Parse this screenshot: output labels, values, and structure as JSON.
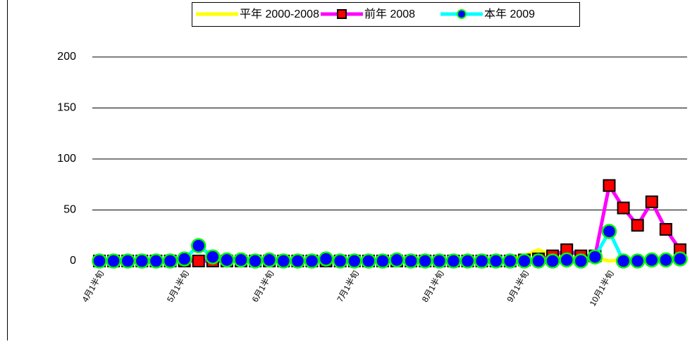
{
  "chart_data": {
    "type": "line",
    "categories": [
      "4月1半旬",
      null,
      null,
      null,
      null,
      null,
      "5月1半旬",
      null,
      null,
      null,
      null,
      null,
      "6月1半旬",
      null,
      null,
      null,
      null,
      null,
      "7月1半旬",
      null,
      null,
      null,
      null,
      null,
      "8月1半旬",
      null,
      null,
      null,
      null,
      null,
      "9月1半旬",
      null,
      null,
      null,
      null,
      null,
      "10月1半旬",
      null,
      null,
      null,
      null,
      null
    ],
    "series": [
      {
        "name": "平年 2000-2008",
        "color": "#ffff00",
        "marker": "none",
        "values": [
          0,
          0,
          0,
          0,
          0,
          0,
          0,
          0,
          0,
          0,
          0,
          0,
          0,
          0,
          0,
          0,
          0,
          0,
          0,
          0,
          0,
          0,
          0,
          0,
          0,
          0,
          0,
          0,
          0,
          2,
          5,
          11,
          5,
          3,
          2,
          3,
          0,
          1,
          1,
          2,
          3,
          2
        ]
      },
      {
        "name": "前年 2008",
        "color": "#ff00ff",
        "marker": "square",
        "marker_color": "#ff0000",
        "marker_edge": "#000000",
        "values": [
          0,
          0,
          0,
          0,
          0,
          0,
          0,
          0,
          0,
          0,
          0,
          0,
          0,
          0,
          0,
          0,
          0,
          0,
          0,
          0,
          0,
          0,
          0,
          0,
          0,
          0,
          0,
          0,
          0,
          0,
          1,
          2,
          5,
          11,
          5,
          5,
          74,
          52,
          35,
          58,
          31,
          11
        ]
      },
      {
        "name": "本年 2009",
        "color": "#00ffff",
        "marker": "circle",
        "marker_color": "#0000ff",
        "marker_edge": "#00ff00",
        "values": [
          0,
          0,
          0,
          0,
          0,
          0,
          2,
          15,
          4,
          1,
          1,
          0,
          1,
          0,
          0,
          0,
          2,
          0,
          0,
          0,
          0,
          1,
          0,
          0,
          0,
          0,
          0,
          0,
          0,
          0,
          0,
          0,
          0,
          1,
          0,
          4,
          29,
          0,
          0,
          1,
          1,
          2
        ]
      }
    ],
    "ylim": [
      0,
      200
    ],
    "yticks": [
      0,
      50,
      100,
      150,
      200
    ],
    "grid": true
  }
}
